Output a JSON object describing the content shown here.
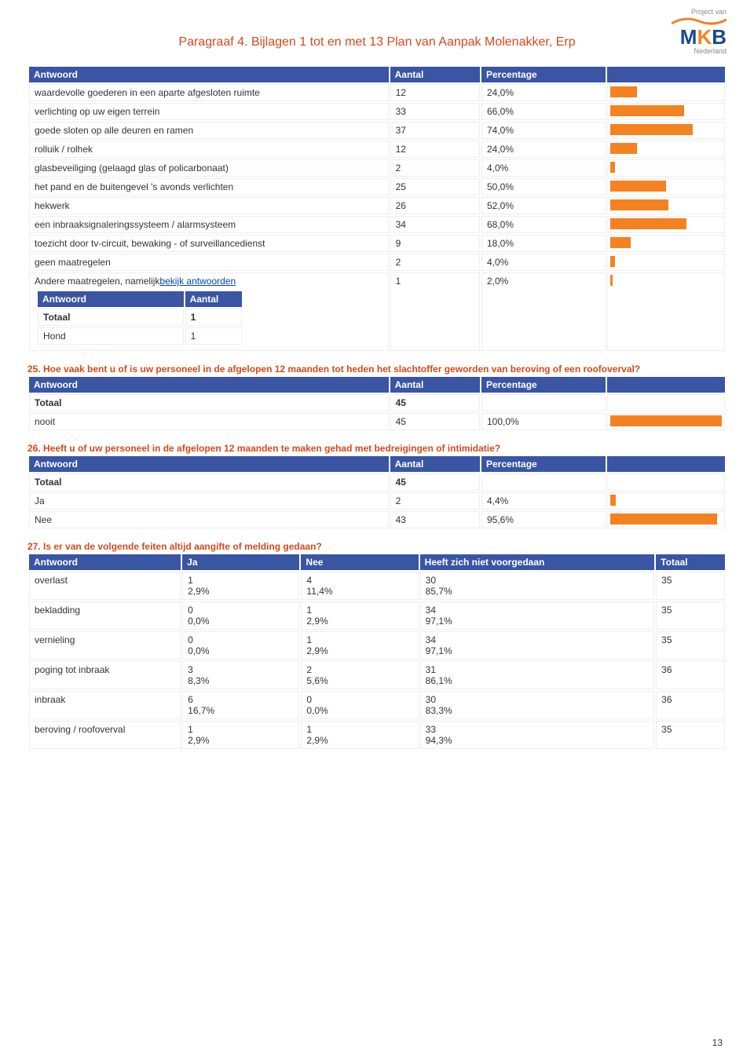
{
  "header": {
    "project_van": "Project van",
    "logo_m": "M",
    "logo_k": "K",
    "logo_b": "B",
    "nederland": "Nederland",
    "title": "Paragraaf 4. Bijlagen 1 tot en met 13 Plan van Aanpak Molenakker, Erp"
  },
  "colors": {
    "accent_blue": "#3955a3",
    "accent_orange": "#f58220",
    "title_red": "#d44a1a",
    "link": "#0645ad"
  },
  "t24": {
    "cols": [
      "Antwoord",
      "Aantal",
      "Percentage"
    ],
    "rows": [
      {
        "label": "waardevolle goederen in een aparte afgesloten ruimte",
        "n": "12",
        "pct": "24,0%",
        "bar": 24
      },
      {
        "label": "verlichting op uw eigen terrein",
        "n": "33",
        "pct": "66,0%",
        "bar": 66
      },
      {
        "label": "goede sloten op alle deuren en ramen",
        "n": "37",
        "pct": "74,0%",
        "bar": 74
      },
      {
        "label": "rolluik / rolhek",
        "n": "12",
        "pct": "24,0%",
        "bar": 24
      },
      {
        "label": "glasbeveiliging (gelaagd glas of policarbonaat)",
        "n": "2",
        "pct": "4,0%",
        "bar": 4
      },
      {
        "label": "het pand en de buitengevel 's avonds verlichten",
        "n": "25",
        "pct": "50,0%",
        "bar": 50
      },
      {
        "label": "hekwerk",
        "n": "26",
        "pct": "52,0%",
        "bar": 52
      },
      {
        "label": "een inbraaksignaleringssysteem / alarmsysteem",
        "n": "34",
        "pct": "68,0%",
        "bar": 68
      },
      {
        "label": "toezicht door tv-circuit, bewaking - of surveillancedienst",
        "n": "9",
        "pct": "18,0%",
        "bar": 18
      },
      {
        "label": "geen maatregelen",
        "n": "2",
        "pct": "4,0%",
        "bar": 4
      }
    ],
    "andere_label": "Andere maatregelen, namelijk",
    "bekijk": "bekijk antwoorden",
    "andere_n": "1",
    "andere_pct": "2,0%",
    "andere_bar": 2,
    "nested_cols": [
      "Antwoord",
      "Aantal"
    ],
    "nested_totaal": "Totaal",
    "nested_totaal_n": "1",
    "nested_rows": [
      {
        "label": "Hond",
        "n": "1"
      }
    ]
  },
  "q25": {
    "title": "25. Hoe vaak bent u of is uw personeel in de afgelopen 12 maanden tot heden het slachtoffer geworden van beroving of een roofoverval?",
    "cols": [
      "Antwoord",
      "Aantal",
      "Percentage"
    ],
    "totaal": "Totaal",
    "totaal_n": "45",
    "rows": [
      {
        "label": "nooit",
        "n": "45",
        "pct": "100,0%",
        "bar": 100
      }
    ]
  },
  "q26": {
    "title": "26. Heeft u of uw personeel in de afgelopen 12 maanden te maken gehad met bedreigingen of intimidatie?",
    "cols": [
      "Antwoord",
      "Aantal",
      "Percentage"
    ],
    "totaal": "Totaal",
    "totaal_n": "45",
    "rows": [
      {
        "label": "Ja",
        "n": "2",
        "pct": "4,4%",
        "bar": 4.4
      },
      {
        "label": "Nee",
        "n": "43",
        "pct": "95,6%",
        "bar": 95.6
      }
    ]
  },
  "q27": {
    "title": "27. Is er van de volgende feiten altijd aangifte of melding gedaan?",
    "cols": [
      "Antwoord",
      "Ja",
      "Nee",
      "Heeft zich niet voorgedaan",
      "Totaal"
    ],
    "rows": [
      {
        "label": "overlast",
        "ja": "1\n2,9%",
        "nee": "4\n11,4%",
        "niet": "30\n85,7%",
        "tot": "35"
      },
      {
        "label": "bekladding",
        "ja": "0\n0,0%",
        "nee": "1\n2,9%",
        "niet": "34\n97,1%",
        "tot": "35"
      },
      {
        "label": "vernieling",
        "ja": "0\n0,0%",
        "nee": "1\n2,9%",
        "niet": "34\n97,1%",
        "tot": "35"
      },
      {
        "label": "poging tot inbraak",
        "ja": "3\n8,3%",
        "nee": "2\n5,6%",
        "niet": "31\n86,1%",
        "tot": "36"
      },
      {
        "label": "inbraak",
        "ja": "6\n16,7%",
        "nee": "0\n0,0%",
        "niet": "30\n83,3%",
        "tot": "36"
      },
      {
        "label": "beroving / roofoverval",
        "ja": "1\n2,9%",
        "nee": "1\n2,9%",
        "niet": "33\n94,3%",
        "tot": "35"
      }
    ]
  },
  "pagenum": "13"
}
